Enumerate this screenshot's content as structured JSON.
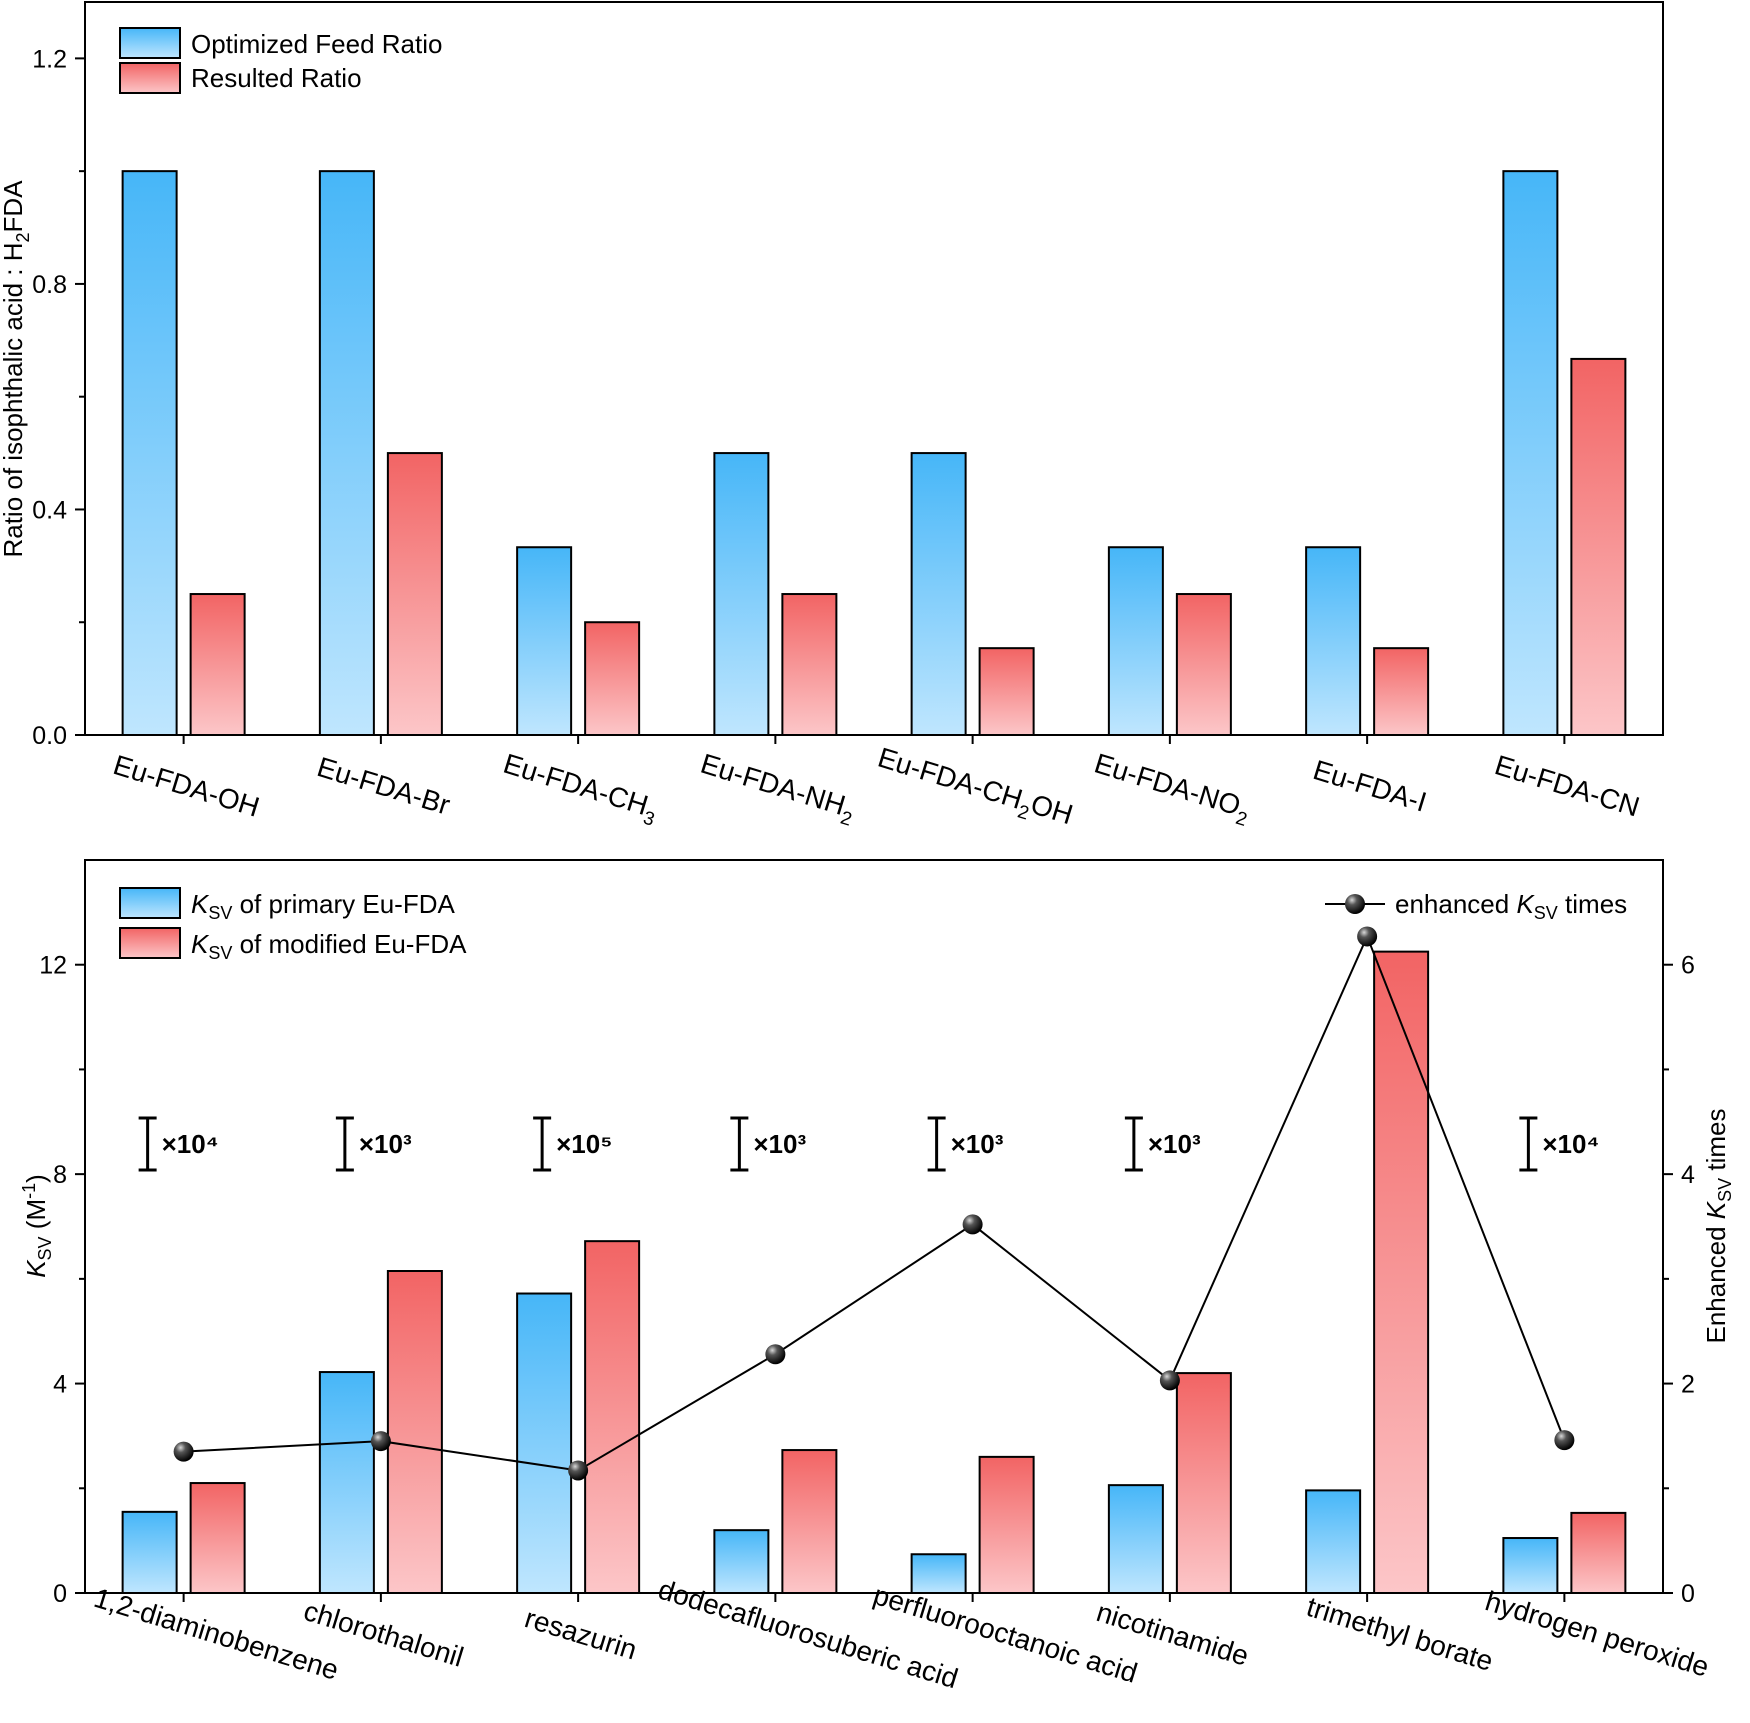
{
  "chart_data": [
    {
      "type": "bar",
      "categories": [
        "Eu-FDA-OH",
        "Eu-FDA-Br",
        "Eu-FDA-CH3",
        "Eu-FDA-NH2",
        "Eu-FDA-CH2OH",
        "Eu-FDA-NO2",
        "Eu-FDA-I",
        "Eu-FDA-CN"
      ],
      "series": [
        {
          "name": "Optimized Feed Ratio",
          "values": [
            1.0,
            1.0,
            0.333,
            0.5,
            0.5,
            0.333,
            0.333,
            1.0
          ],
          "color": "#4db8f8"
        },
        {
          "name": "Resulted Ratio",
          "values": [
            0.25,
            0.5,
            0.2,
            0.25,
            0.154,
            0.25,
            0.154,
            0.667
          ],
          "color": "#f26a6a"
        }
      ],
      "xlabel": "",
      "ylabel": "Ratio of isophthalic acid : H₂FDA",
      "ylim": [
        0,
        1.3
      ],
      "yticks": [
        "0.0",
        "0.4",
        "0.8",
        "1.2"
      ],
      "legend": "top-left",
      "grid": false
    },
    {
      "type": "bar",
      "categories": [
        "1,2-diaminobenzene",
        "chlorothalonil",
        "resazurin",
        "dodecafluorosuberic acid",
        "perfluorooctanoic acid",
        "nicotinamide",
        "trimethyl borate",
        "hydrogen peroxide"
      ],
      "series": [
        {
          "name": "KSV of primary Eu-FDA",
          "values": [
            1.55,
            4.22,
            5.72,
            1.2,
            0.74,
            2.06,
            1.96,
            1.05
          ],
          "color": "#4db8f8"
        },
        {
          "name": "KSV of modified Eu-FDA",
          "values": [
            2.1,
            6.15,
            6.72,
            2.73,
            2.6,
            4.2,
            12.25,
            1.53
          ],
          "color": "#f26a6a"
        },
        {
          "name": "enhanced KSV times",
          "type": "line",
          "axis": "right",
          "values": [
            1.35,
            1.45,
            1.17,
            2.28,
            3.52,
            2.03,
            6.27,
            1.46
          ]
        }
      ],
      "multipliers": [
        "×10⁴",
        "×10³",
        "×10⁵",
        "×10³",
        "×10³",
        "×10³",
        "",
        "×10⁴"
      ],
      "xlabel": "",
      "ylabel": "KSV (M⁻¹)",
      "ylabel2": "Enhanced KSV times",
      "ylim": [
        0,
        14
      ],
      "ylim2": [
        0,
        7
      ],
      "yticks": [
        "0",
        "4",
        "8",
        "12"
      ],
      "yticks2": [
        "0",
        "2",
        "4",
        "6"
      ],
      "legend": "top-left",
      "grid": false
    }
  ]
}
